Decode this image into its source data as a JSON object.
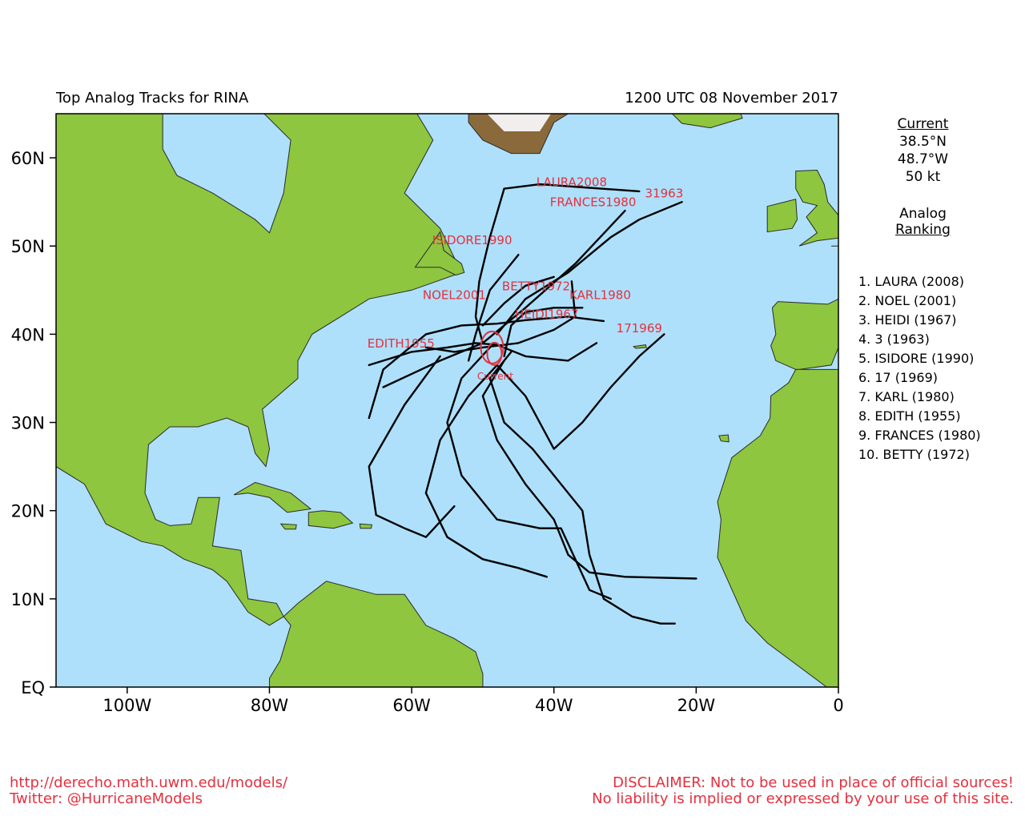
{
  "header": {
    "title": "Top Analog Tracks for RINA",
    "datetime": "1200 UTC 08 November 2017"
  },
  "axes": {
    "lat_labels": [
      "60N",
      "50N",
      "40N",
      "30N",
      "20N",
      "10N",
      "EQ"
    ],
    "lat_values": [
      60,
      50,
      40,
      30,
      20,
      10,
      0
    ],
    "lon_labels": [
      "100W",
      "80W",
      "60W",
      "40W",
      "20W",
      "0"
    ],
    "lon_values": [
      -100,
      -80,
      -60,
      -40,
      -20,
      0
    ],
    "lat_range": [
      0,
      65
    ],
    "lon_range": [
      -110,
      0
    ]
  },
  "current": {
    "heading": "Current",
    "lat": "38.5°N",
    "lon": "48.7°W",
    "wind": "50 kt",
    "marker_label": "Current",
    "position": [
      -48.7,
      38.5
    ]
  },
  "analog_heading": [
    "Analog",
    "Ranking"
  ],
  "ranking": [
    "1.  LAURA (2008)",
    "2.  NOEL (2001)",
    "3.  HEIDI (1967)",
    "4.  3 (1963)",
    "5.  ISIDORE (1990)",
    "6.  17 (1969)",
    "7.  KARL (1980)",
    "8.  EDITH (1955)",
    "9.  FRANCES (1980)",
    "10. BETTY (1972)"
  ],
  "colors": {
    "ocean": "#aee0fb",
    "land": "#8ec63f",
    "track": "#000000",
    "label": "#e5303e"
  },
  "tracks": [
    {
      "name": "LAURA2008",
      "label_pos": [
        -37.5,
        56.8
      ],
      "points": [
        [
          -50,
          39
        ],
        [
          -51,
          42
        ],
        [
          -50.5,
          46
        ],
        [
          -49,
          51
        ],
        [
          -47,
          56.5
        ],
        [
          -42,
          57
        ],
        [
          -35,
          56.6
        ],
        [
          -28,
          56.2
        ]
      ]
    },
    {
      "name": "31963",
      "label_pos": [
        -24.5,
        55.5
      ],
      "points": [
        [
          -48,
          40
        ],
        [
          -44,
          44
        ],
        [
          -38,
          47
        ],
        [
          -32,
          51
        ],
        [
          -28,
          53
        ],
        [
          -22,
          55
        ]
      ]
    },
    {
      "name": "FRANCES1980",
      "label_pos": [
        -34.5,
        54.5
      ],
      "points": [
        [
          -64,
          34
        ],
        [
          -56,
          37
        ],
        [
          -50,
          39
        ],
        [
          -44,
          43
        ],
        [
          -37,
          48
        ],
        [
          -30,
          54
        ]
      ]
    },
    {
      "name": "ISIDORE1990",
      "label_pos": [
        -51.5,
        50.2
      ],
      "points": [
        [
          -52,
          37
        ],
        [
          -51,
          40
        ],
        [
          -49,
          45
        ],
        [
          -45,
          49
        ]
      ]
    },
    {
      "name": "BETTY1972",
      "label_pos": [
        -42.5,
        45
      ],
      "points": [
        [
          -50,
          41
        ],
        [
          -47,
          43.5
        ],
        [
          -44,
          45.5
        ],
        [
          -40,
          46.5
        ]
      ]
    },
    {
      "name": "NOEL2001",
      "label_pos": [
        -54,
        44
      ],
      "points": [
        [
          -66,
          30.5
        ],
        [
          -64,
          36
        ],
        [
          -58,
          40
        ],
        [
          -53,
          41
        ],
        [
          -48,
          41.2
        ],
        [
          -44,
          41.6
        ],
        [
          -38,
          42
        ],
        [
          -33,
          41.5
        ]
      ]
    },
    {
      "name": "KARL1980",
      "label_pos": [
        -33.5,
        44
      ],
      "points": [
        [
          -58,
          38.5
        ],
        [
          -54,
          38
        ],
        [
          -50,
          38.5
        ],
        [
          -45,
          39
        ],
        [
          -40,
          40.5
        ],
        [
          -37,
          42
        ],
        [
          -37.5,
          46
        ]
      ]
    },
    {
      "name": "HEIDI1967",
      "label_pos": [
        -41,
        41.8
      ],
      "points": [
        [
          -47,
          37.5
        ],
        [
          -46,
          41
        ],
        [
          -44,
          42.5
        ],
        [
          -40,
          43
        ],
        [
          -36,
          43
        ]
      ]
    },
    {
      "name": "171969",
      "label_pos": [
        -28,
        40.2
      ],
      "points": [
        [
          -48,
          36.5
        ],
        [
          -44,
          33
        ],
        [
          -40,
          27
        ],
        [
          -36,
          30
        ],
        [
          -32,
          34
        ],
        [
          -28,
          37.5
        ],
        [
          -24.5,
          40
        ]
      ]
    },
    {
      "name": "EDITH1955",
      "label_pos": [
        -61.5,
        38.5
      ],
      "points": [
        [
          -66,
          36.5
        ],
        [
          -60,
          38
        ],
        [
          -55,
          38.5
        ],
        [
          -51,
          39
        ],
        [
          -48,
          38.8
        ],
        [
          -44,
          37.5
        ],
        [
          -38,
          37
        ],
        [
          -34,
          39
        ]
      ]
    },
    {
      "name": "",
      "label_pos": null,
      "points": [
        [
          -48,
          36.5
        ],
        [
          -52,
          33
        ],
        [
          -56,
          28
        ],
        [
          -58,
          22
        ],
        [
          -55,
          17
        ],
        [
          -50,
          14.5
        ],
        [
          -45,
          13.5
        ],
        [
          -41,
          12.5
        ]
      ]
    },
    {
      "name": "",
      "label_pos": null,
      "points": [
        [
          -56,
          37.5
        ],
        [
          -61,
          32
        ],
        [
          -66,
          25
        ],
        [
          -65,
          19.5
        ],
        [
          -61,
          18
        ],
        [
          -58,
          17
        ],
        [
          -54,
          20.5
        ]
      ]
    },
    {
      "name": "",
      "label_pos": null,
      "points": [
        [
          -47,
          37
        ],
        [
          -50,
          33
        ],
        [
          -48,
          28
        ],
        [
          -44,
          23
        ],
        [
          -40,
          19
        ],
        [
          -38,
          15
        ],
        [
          -35,
          13
        ],
        [
          -30,
          12.5
        ],
        [
          -20,
          12.3
        ]
      ]
    },
    {
      "name": "",
      "label_pos": null,
      "points": [
        [
          -46,
          38
        ],
        [
          -49,
          35
        ],
        [
          -47,
          30
        ],
        [
          -43,
          27
        ],
        [
          -39,
          23
        ],
        [
          -36,
          20
        ],
        [
          -35,
          15
        ],
        [
          -33,
          10
        ],
        [
          -29,
          8
        ],
        [
          -25,
          7.2
        ],
        [
          -23,
          7.2
        ]
      ]
    },
    {
      "name": "",
      "label_pos": null,
      "points": [
        [
          -49,
          38.5
        ],
        [
          -53,
          35
        ],
        [
          -55,
          30
        ],
        [
          -53,
          24
        ],
        [
          -48,
          19
        ],
        [
          -42,
          18
        ],
        [
          -39,
          18
        ],
        [
          -37,
          14.5
        ],
        [
          -35,
          11
        ],
        [
          -32,
          10
        ]
      ]
    }
  ]
}
